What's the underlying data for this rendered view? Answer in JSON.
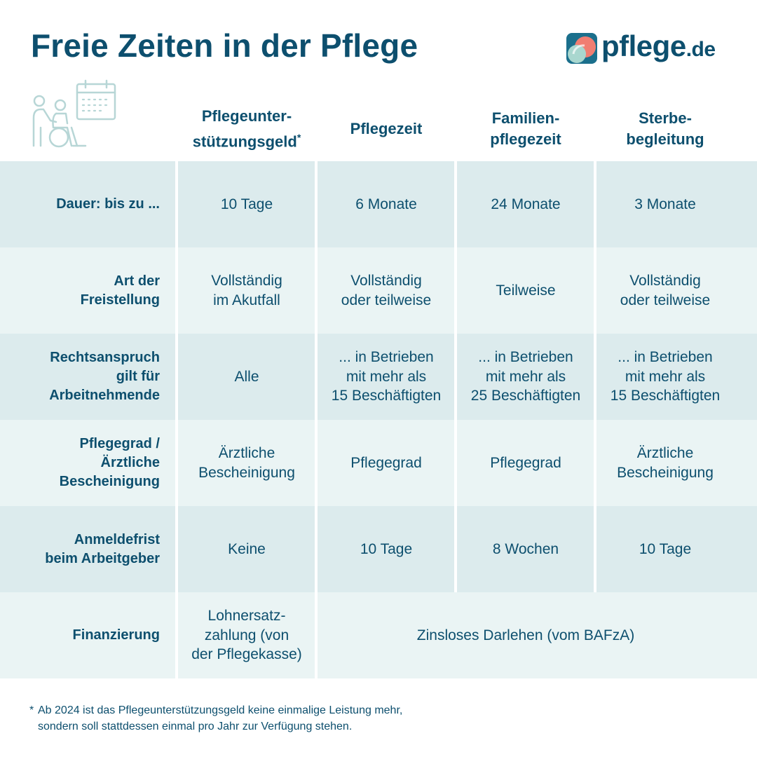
{
  "title": "Freie Zeiten in der Pflege",
  "logo": {
    "name": "pflege",
    "tld": ".de",
    "icon": "pflege-logo-icon"
  },
  "header_icon": "caregiver-wheelchair-calendar-icon",
  "columns": [
    {
      "line1": "Pflegeunter-",
      "line2": "stützungsgeld",
      "mark": "*"
    },
    {
      "line1": "Pflegezeit",
      "line2": "",
      "mark": ""
    },
    {
      "line1": "Familien-",
      "line2": "pflegezeit",
      "mark": ""
    },
    {
      "line1": "Sterbe-",
      "line2": "begleitung",
      "mark": ""
    }
  ],
  "rows": [
    {
      "label": [
        "Dauer: bis zu ..."
      ],
      "cells": [
        [
          "10 Tage"
        ],
        [
          "6 Monate"
        ],
        [
          "24 Monate"
        ],
        [
          "3 Monate"
        ]
      ]
    },
    {
      "label": [
        "Art der",
        "Freistellung"
      ],
      "cells": [
        [
          "Vollständig",
          "im Akutfall"
        ],
        [
          "Vollständig",
          "oder teilweise"
        ],
        [
          "Teilweise"
        ],
        [
          "Vollständig",
          "oder teilweise"
        ]
      ]
    },
    {
      "label": [
        "Rechtsanspruch",
        "gilt für",
        "Arbeitnehmende"
      ],
      "cells": [
        [
          "Alle"
        ],
        [
          "... in Betrieben",
          "mit mehr als",
          "15 Beschäftigten"
        ],
        [
          "... in Betrieben",
          "mit mehr als",
          "25 Beschäftigten"
        ],
        [
          "... in Betrieben",
          "mit mehr als",
          "15 Beschäftigten"
        ]
      ]
    },
    {
      "label": [
        "Pflegegrad /",
        "Ärztliche",
        "Bescheinigung"
      ],
      "cells": [
        [
          "Ärztliche",
          "Bescheinigung"
        ],
        [
          "Pflegegrad"
        ],
        [
          "Pflegegrad"
        ],
        [
          "Ärztliche",
          "Bescheinigung"
        ]
      ]
    },
    {
      "label": [
        "Anmeldefrist",
        "beim Arbeitgeber"
      ],
      "cells": [
        [
          "Keine"
        ],
        [
          "10 Tage"
        ],
        [
          "8 Wochen"
        ],
        [
          "10 Tage"
        ]
      ]
    },
    {
      "label": [
        "Finanzierung"
      ],
      "cells": [
        [
          "Lohnersatz-",
          "zahlung (von",
          "der Pflegekasse)"
        ],
        [
          "Zinsloses Darlehen (vom BAFzA)"
        ]
      ]
    }
  ],
  "footnote": {
    "mark": "*",
    "line1": "Ab 2024 ist das Pflegeunterstützungsgeld keine einmalige Leistung mehr,",
    "line2": "sondern soll stattdessen einmal pro Jahr zur Verfügung stehen."
  },
  "colors": {
    "primary": "#0d4f6e",
    "row_dark": "#dcebed",
    "row_light": "#eaf4f4",
    "icon_stroke": "#b7d6d6",
    "logo_teal": "#1b6f8c",
    "logo_coral": "#f07e72",
    "logo_mint": "#a9d7cf"
  }
}
